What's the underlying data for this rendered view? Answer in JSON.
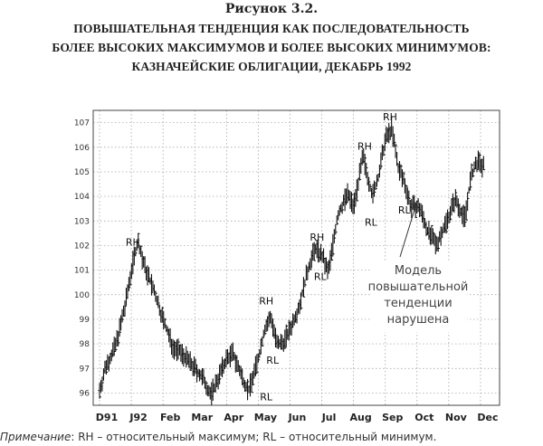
{
  "figure_label": "Рисунок 3.2.",
  "title_lines": [
    "ПОВЫШАТЕЛЬНАЯ ТЕНДЕНЦИЯ КАК ПОСЛЕДОВАТЕЛЬНОСТЬ",
    "БОЛЕЕ ВЫСОКИХ МАКСИМУМОВ И БОЛЕЕ ВЫСОКИХ МИНИМУМОВ:",
    "КАЗНАЧЕЙСКИЕ ОБЛИГАЦИИ, ДЕКАБРЬ 1992"
  ],
  "note_prefix": "Примечание",
  "note_text": ": RH – относительный максимум; RL – относительный минимум.",
  "chart_data": {
    "type": "bar",
    "subtype": "ohlc",
    "ylim": [
      95.5,
      107.5
    ],
    "y_ticks": [
      96,
      97,
      98,
      99,
      100,
      101,
      102,
      103,
      104,
      105,
      106,
      107
    ],
    "x_ticks": [
      "D91",
      "J92",
      "Feb",
      "Mar",
      "Apr",
      "May",
      "Jun",
      "Jul",
      "Aug",
      "Sep",
      "Oct",
      "Nov",
      "Dec"
    ],
    "grid": true,
    "price_path": [
      [
        0.0,
        96.1
      ],
      [
        0.2,
        97.1
      ],
      [
        0.5,
        97.9
      ],
      [
        0.8,
        99.5
      ],
      [
        1.0,
        101.0
      ],
      [
        1.2,
        102.2
      ],
      [
        1.4,
        101.2
      ],
      [
        1.7,
        100.2
      ],
      [
        2.0,
        99.0
      ],
      [
        2.3,
        97.9
      ],
      [
        2.6,
        97.6
      ],
      [
        3.0,
        97.0
      ],
      [
        3.3,
        96.5
      ],
      [
        3.5,
        95.9
      ],
      [
        3.8,
        96.8
      ],
      [
        4.0,
        97.4
      ],
      [
        4.2,
        97.6
      ],
      [
        4.5,
        96.6
      ],
      [
        4.7,
        96.1
      ],
      [
        5.0,
        97.4
      ],
      [
        5.2,
        98.6
      ],
      [
        5.4,
        99.1
      ],
      [
        5.6,
        97.9
      ],
      [
        5.8,
        98.1
      ],
      [
        6.0,
        98.6
      ],
      [
        6.3,
        99.6
      ],
      [
        6.6,
        101.2
      ],
      [
        6.8,
        101.9
      ],
      [
        7.0,
        101.6
      ],
      [
        7.2,
        100.9
      ],
      [
        7.5,
        103.2
      ],
      [
        7.8,
        104.1
      ],
      [
        8.0,
        103.6
      ],
      [
        8.3,
        105.6
      ],
      [
        8.6,
        104.0
      ],
      [
        8.8,
        104.9
      ],
      [
        9.0,
        106.3
      ],
      [
        9.2,
        106.8
      ],
      [
        9.4,
        105.2
      ],
      [
        9.6,
        104.6
      ],
      [
        9.8,
        103.6
      ],
      [
        10.1,
        103.5
      ],
      [
        10.3,
        102.7
      ],
      [
        10.6,
        102.0
      ],
      [
        10.9,
        102.9
      ],
      [
        11.2,
        103.9
      ],
      [
        11.5,
        103.1
      ],
      [
        11.7,
        104.8
      ],
      [
        11.9,
        105.4
      ],
      [
        12.1,
        105.2
      ]
    ],
    "annotations": [
      {
        "text": "RH",
        "x": 1.05,
        "y": 102.0,
        "anchor": "none"
      },
      {
        "text": "RH",
        "x": 5.25,
        "y": 99.6
      },
      {
        "text": "RL",
        "x": 5.45,
        "y": 97.2
      },
      {
        "text": "RL",
        "x": 5.25,
        "y": 95.7
      },
      {
        "text": "RH",
        "x": 6.85,
        "y": 102.2
      },
      {
        "text": "RL",
        "x": 6.95,
        "y": 100.6
      },
      {
        "text": "RH",
        "x": 8.35,
        "y": 105.9
      },
      {
        "text": "RL",
        "x": 8.55,
        "y": 102.8
      },
      {
        "text": "RH",
        "x": 9.15,
        "y": 107.1
      },
      {
        "text": "RL",
        "x": 9.6,
        "y": 103.3
      }
    ],
    "callout": {
      "lines": [
        "Модель",
        "повышательной",
        "тенденции",
        "нарушена"
      ],
      "arrow_to": {
        "x": 9.95,
        "y": 103.8
      }
    }
  }
}
